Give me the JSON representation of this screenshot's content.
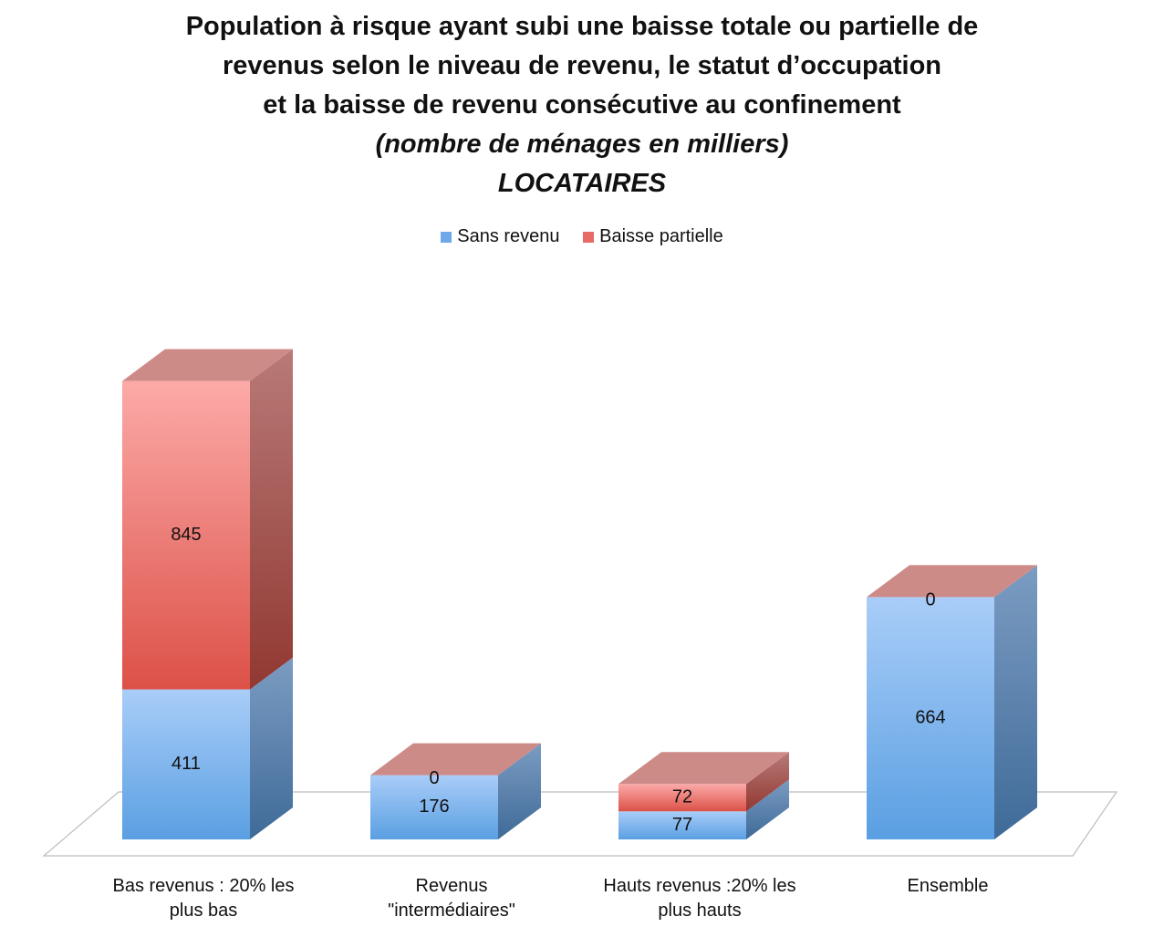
{
  "title": {
    "line1": "Population à risque ayant subi une baisse totale ou partielle de",
    "line2": "revenus selon le niveau de revenu, le statut d’occupation",
    "line3": "et la baisse de revenu consécutive au confinement",
    "subtitle": "(nombre de ménages en milliers)",
    "segment": "LOCATAIRES"
  },
  "legend": {
    "items": [
      {
        "label": "Sans revenu",
        "color": "#6fa8e8"
      },
      {
        "label": "Baisse partielle",
        "color": "#e86a66"
      }
    ]
  },
  "chart_data": {
    "type": "bar",
    "stacked": true,
    "style": "3d",
    "title": "Population à risque ayant subi une baisse totale ou partielle de revenus selon le niveau de revenu, le statut d’occupation et la baisse de revenu consécutive au confinement",
    "subtitle": "(nombre de ménages en milliers) LOCATAIRES",
    "categories": [
      "Bas revenus : 20% les plus bas",
      "Revenus \"intermédiaires\"",
      "Hauts revenus :20% les plus hauts",
      "Ensemble"
    ],
    "category_lines": [
      [
        "Bas revenus : 20% les",
        "plus bas"
      ],
      [
        "Revenus",
        "\"intermédiaires\""
      ],
      [
        "Hauts revenus :20% les",
        "plus hauts"
      ],
      [
        "Ensemble"
      ]
    ],
    "series": [
      {
        "name": "Sans revenu",
        "values": [
          411,
          176,
          77,
          664
        ],
        "color": "#6fa8e8"
      },
      {
        "name": "Baisse partielle",
        "values": [
          845,
          0,
          72,
          0
        ],
        "color": "#e86a66"
      }
    ],
    "legend_position": "top",
    "grid": false
  }
}
